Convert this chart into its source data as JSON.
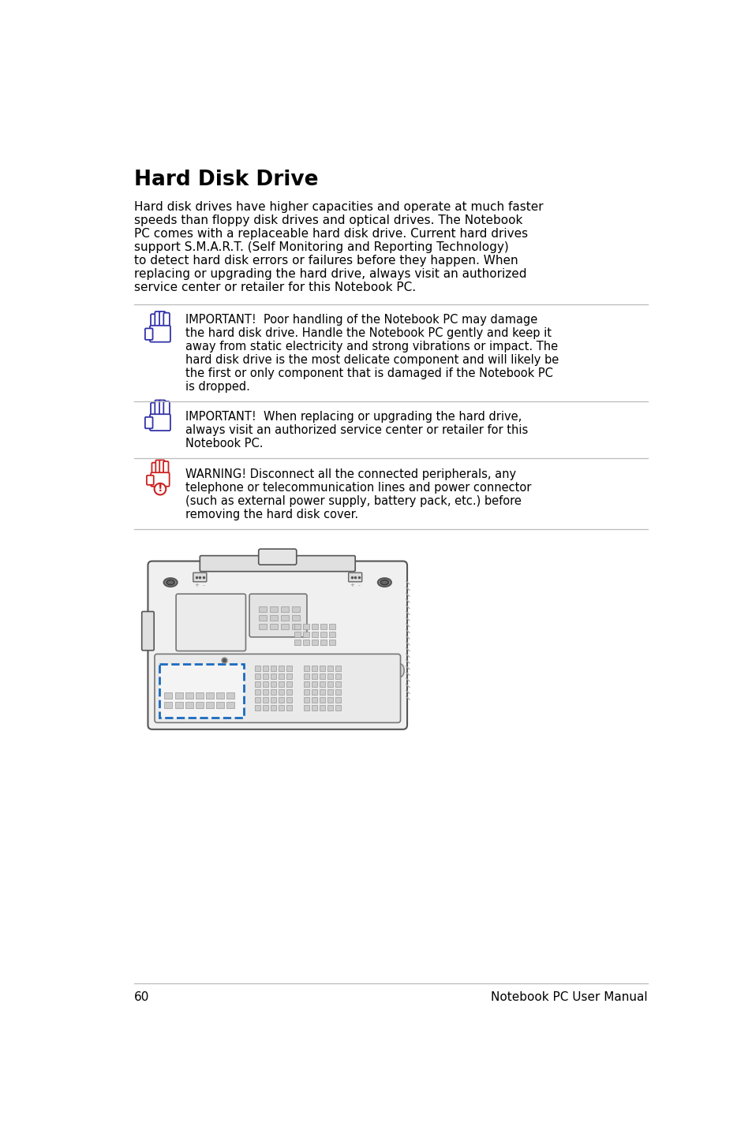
{
  "title": "Hard Disk Drive",
  "notices": [
    {
      "icon_color": "#3333aa",
      "icon_type": "hand",
      "lines": [
        "IMPORTANT!  Poor handling of the Notebook PC may damage",
        "the hard disk drive. Handle the Notebook PC gently and keep it",
        "away from static electricity and strong vibrations or impact. The",
        "hard disk drive is the most delicate component and will likely be",
        "the first or only component that is damaged if the Notebook PC",
        "is dropped."
      ]
    },
    {
      "icon_color": "#3333aa",
      "icon_type": "hand",
      "lines": [
        "IMPORTANT!  When replacing or upgrading the hard drive,",
        "always visit an authorized service center or retailer for this",
        "Notebook PC."
      ]
    },
    {
      "icon_color": "#cc2222",
      "icon_type": "warning",
      "lines": [
        "WARNING! Disconnect all the connected peripherals, any",
        "telephone or telecommunication lines and power connector",
        "(such as external power supply, battery pack, etc.) before",
        "removing the hard disk cover."
      ]
    }
  ],
  "body_lines": [
    "Hard disk drives have higher capacities and operate at much faster",
    "speeds than floppy disk drives and optical drives. The Notebook",
    "PC comes with a replaceable hard disk drive. Current hard drives",
    "support S.M.A.R.T. (Self Monitoring and Reporting Technology)",
    "to detect hard disk errors or failures before they happen. When",
    "replacing or upgrading the hard drive, always visit an authorized",
    "service center or retailer for this Notebook PC."
  ],
  "footer_page": "60",
  "footer_text": "Notebook PC User Manual",
  "background_color": "#ffffff",
  "text_color": "#000000",
  "sep_color": "#bbbbbb",
  "icon_blue": "#3333aa",
  "icon_red": "#cc2222",
  "laptop_body_color": "#f0f0f0",
  "laptop_edge_color": "#555555",
  "laptop_panel_color": "#e8e8e8",
  "hdd_border_color": "#1a6abf",
  "vent_color": "#cccccc",
  "vent_edge": "#999999",
  "screw_color": "#888888"
}
